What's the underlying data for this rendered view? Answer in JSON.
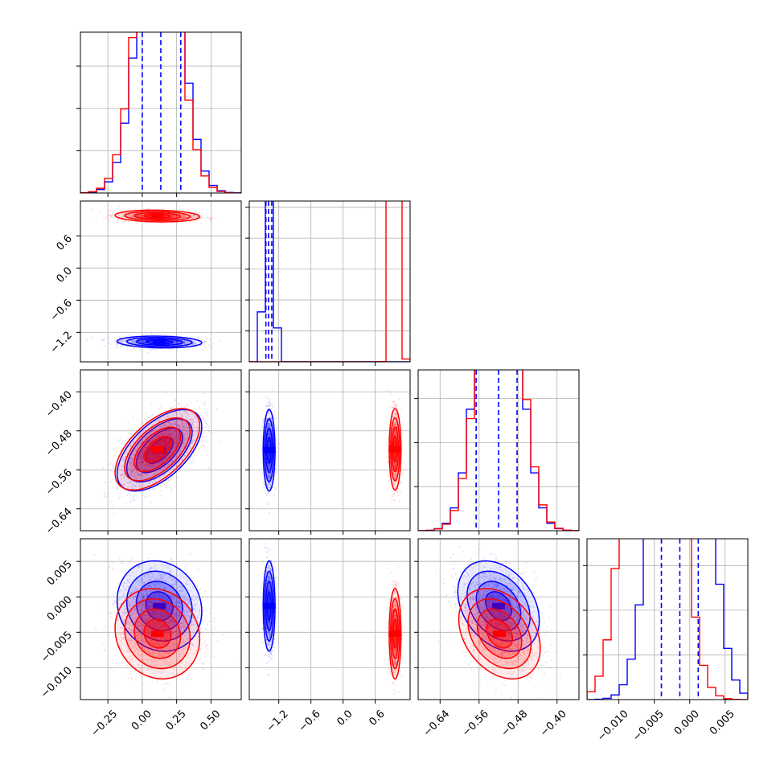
{
  "chart_data": {
    "type": "corner",
    "grid": true,
    "series": [
      {
        "color": "#0000ff",
        "means": [
          0.125,
          -1.38,
          -0.52,
          -0.0013
        ],
        "sigmas": [
          0.14,
          0.05,
          0.038,
          0.0029
        ]
      },
      {
        "color": "#ff0000",
        "means": [
          0.11,
          0.97,
          -0.518,
          -0.0052
        ],
        "sigmas": [
          0.14,
          0.05,
          0.038,
          0.0029
        ]
      }
    ],
    "correlations": {
      "1-0": -0.12,
      "2-0": 0.58,
      "2-1": 0.0,
      "3-0": -0.12,
      "3-1": 0.0,
      "3-2": -0.32
    },
    "quantiles_lines": [
      [
        0.0,
        0.135,
        0.28
      ],
      [
        -1.44,
        -1.39,
        -1.33
      ],
      [
        -0.566,
        -0.52,
        -0.482
      ],
      [
        -0.004,
        -0.0014,
        0.0012
      ]
    ],
    "ranges": [
      [
        -0.45,
        0.72
      ],
      [
        -1.75,
        1.25
      ],
      [
        -0.685,
        -0.355
      ],
      [
        -0.0145,
        0.0082
      ]
    ],
    "hist_max": [
      760,
      2600,
      730,
      360
    ],
    "ticks": [
      {
        "values": [
          -0.25,
          0.0,
          0.25,
          0.5
        ],
        "labels": [
          "−0.25",
          "0.00",
          "0.25",
          "0.50"
        ]
      },
      {
        "values": [
          -1.2,
          -0.6,
          0.0,
          0.6
        ],
        "labels": [
          "−1.2",
          "−0.6",
          "0.0",
          "0.6"
        ]
      },
      {
        "values": [
          -0.64,
          -0.56,
          -0.48,
          -0.4
        ],
        "labels": [
          "−0.64",
          "−0.56",
          "−0.48",
          "−0.40"
        ]
      },
      {
        "values": [
          -0.01,
          -0.005,
          0.0,
          0.005
        ],
        "labels": [
          "−0.010",
          "−0.005",
          "0.000",
          "0.005"
        ]
      }
    ],
    "hist_yticks": [
      [
        200,
        400,
        600
      ],
      [
        500,
        1000,
        1500,
        2000,
        2500
      ],
      [
        200,
        400,
        600
      ],
      [
        100,
        200,
        300
      ]
    ]
  }
}
